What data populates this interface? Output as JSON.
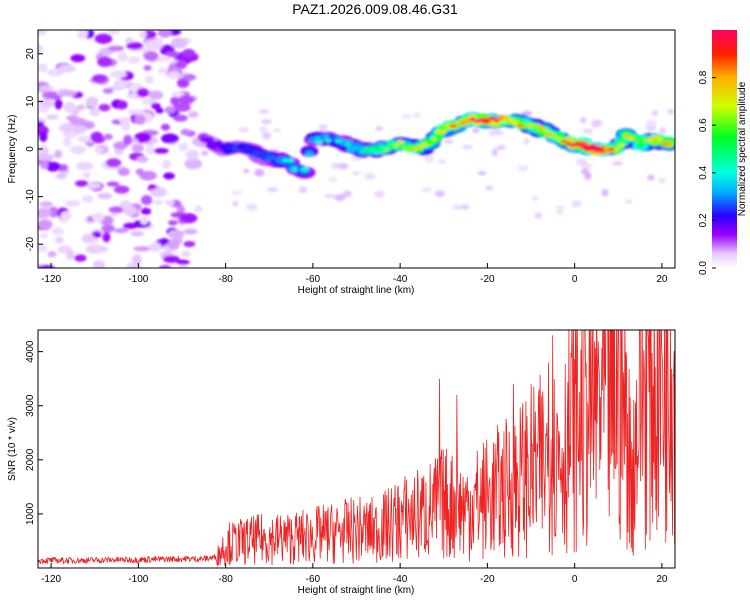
{
  "title": "PAZ1.2026.009.08.46.G31",
  "colors": {
    "snr_line": "#ee2222"
  },
  "chart_data": [
    {
      "type": "heatmap",
      "xlabel": "Height of straight line (km)",
      "ylabel": "Frequency (Hz)",
      "xlim": [
        -123,
        23
      ],
      "ylim": [
        -25,
        25
      ],
      "xticks": [
        "-120",
        "-100",
        "-80",
        "-60",
        "-40",
        "-20",
        "0",
        "20"
      ],
      "yticks": [
        "20",
        "10",
        "0",
        "-10",
        "-20"
      ],
      "colorbar": {
        "label": "Normalized spectral amplitude",
        "range": [
          0,
          1
        ],
        "ticks": [
          "0.0",
          "0.2",
          "0.4",
          "0.6",
          "0.8"
        ]
      },
      "ridge": {
        "height_km": [
          -85,
          -80,
          -75,
          -70,
          -65,
          -62,
          -60,
          -55,
          -50,
          -45,
          -40,
          -35,
          -30,
          -25,
          -22,
          -18,
          -15,
          -10,
          -5,
          0,
          5,
          10,
          12,
          15,
          18,
          22
        ],
        "frequency_hz": [
          2,
          0,
          0,
          -2,
          -3,
          -5,
          2,
          2,
          0,
          0,
          1,
          0,
          4,
          6,
          6,
          6,
          6,
          5,
          3,
          1,
          0,
          0,
          3,
          1,
          2,
          1
        ],
        "amplitude": [
          0.15,
          0.2,
          0.25,
          0.25,
          0.3,
          0.3,
          0.3,
          0.3,
          0.35,
          0.4,
          0.5,
          0.55,
          0.6,
          0.65,
          0.8,
          0.75,
          0.65,
          0.55,
          0.55,
          0.75,
          0.95,
          0.5,
          0.6,
          0.5,
          0.55,
          0.6
        ]
      }
    },
    {
      "type": "line",
      "xlabel": "Height of straight line (km)",
      "ylabel": "SNR (10 * v/v)",
      "xlim": [
        -123,
        23
      ],
      "ylim": [
        0,
        4400
      ],
      "xticks": [
        "-120",
        "-100",
        "-80",
        "-60",
        "-40",
        "-20",
        "0",
        "20"
      ],
      "yticks": [
        "1000",
        "2000",
        "3000",
        "4000"
      ],
      "series": [
        {
          "name": "SNR",
          "x": [
            -123,
            -115,
            -105,
            -95,
            -90,
            -85,
            -82,
            -80,
            -75,
            -70,
            -65,
            -60,
            -55,
            -50,
            -45,
            -40,
            -35,
            -32,
            -30,
            -25,
            -20,
            -15,
            -10,
            -5,
            -2,
            0,
            5,
            10,
            12,
            13,
            15,
            20,
            23
          ],
          "base": [
            140,
            140,
            150,
            160,
            170,
            170,
            200,
            450,
            500,
            550,
            550,
            600,
            650,
            700,
            700,
            900,
            1000,
            1100,
            1200,
            1100,
            1300,
            1500,
            1800,
            2000,
            2300,
            2700,
            3000,
            3200,
            2800,
            1500,
            3300,
            3500,
            3700
          ],
          "spikes": [
            {
              "x": -31,
              "y": 3500
            },
            {
              "x": -27,
              "y": 3200
            },
            {
              "x": -14,
              "y": 3400
            },
            {
              "x": -6,
              "y": 3800
            },
            {
              "x": -5,
              "y": 4300
            },
            {
              "x": 20,
              "y": 3900
            },
            {
              "x": 22,
              "y": 4400
            }
          ]
        }
      ]
    }
  ]
}
